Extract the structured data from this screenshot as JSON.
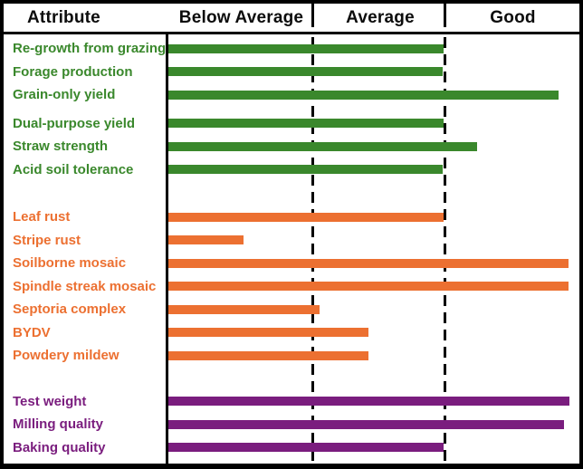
{
  "header": {
    "attribute_label": "Attribute",
    "columns": [
      "Below Average",
      "Average",
      "Good"
    ]
  },
  "colors": {
    "agronomic_green": "#3A882C",
    "disease_orange": "#EC7031",
    "quality_purple": "#7A1D7E",
    "line_black": "#000000",
    "background": "#FFFFFF"
  },
  "chart_data": {
    "type": "bar",
    "orientation": "horizontal",
    "title": "",
    "row_header": "Attribute",
    "x_categories": [
      "Below Average",
      "Average",
      "Good"
    ],
    "x_range": [
      0,
      3
    ],
    "category_boundaries": [
      1,
      2
    ],
    "grid": "dashed-category-boundaries",
    "legend": "none",
    "groups": [
      {
        "name": "agronomic",
        "color": "#3A882C",
        "rows": [
          {
            "label": "Re-growth from grazing",
            "rating": 2.0,
            "pct": 67.0
          },
          {
            "label": "Forage production",
            "rating": 2.0,
            "pct": 66.8
          },
          {
            "label": "Grain-only yield",
            "rating": 2.9,
            "pct": 94.9
          },
          {
            "label": "Dual-purpose yield",
            "rating": 2.0,
            "pct": 67.0,
            "subgap": true
          },
          {
            "label": "Straw strength",
            "rating": 2.25,
            "pct": 75.1
          },
          {
            "label": "Acid soil tolerance",
            "rating": 2.0,
            "pct": 66.8
          }
        ]
      },
      {
        "name": "disease",
        "color": "#EC7031",
        "rows": [
          {
            "label": "Leaf rust",
            "rating": 2.0,
            "pct": 67.0
          },
          {
            "label": "Stripe rust",
            "rating": 0.5,
            "pct": 18.3
          },
          {
            "label": "Soilborne mosaic",
            "rating": 2.95,
            "pct": 97.4
          },
          {
            "label": "Spindle streak mosaic",
            "rating": 2.95,
            "pct": 97.4
          },
          {
            "label": "Septoria complex",
            "rating": 1.05,
            "pct": 36.8
          },
          {
            "label": "BYDV",
            "rating": 1.45,
            "pct": 48.7
          },
          {
            "label": "Powdery mildew",
            "rating": 1.45,
            "pct": 48.7
          }
        ]
      },
      {
        "name": "quality",
        "color": "#7A1D7E",
        "rows": [
          {
            "label": "Test weight",
            "rating": 2.95,
            "pct": 97.6
          },
          {
            "label": "Milling quality",
            "rating": 2.9,
            "pct": 96.3
          },
          {
            "label": "Baking quality",
            "rating": 2.0,
            "pct": 67.0
          }
        ]
      }
    ]
  }
}
